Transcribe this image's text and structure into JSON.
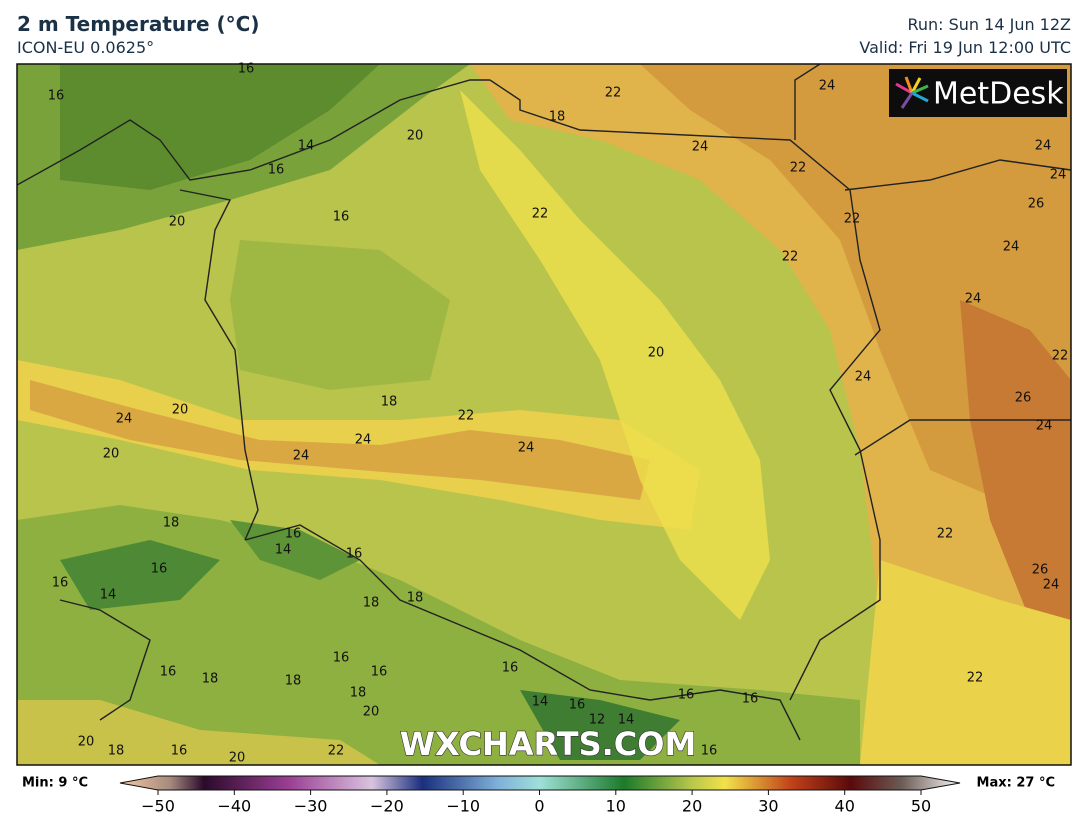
{
  "header": {
    "title": "2 m Temperature (°C)",
    "subtitle": "ICON-EU 0.0625°",
    "run": "Run: Sun 14 Jun 12Z",
    "valid": "Valid: Fri 19 Jun 12:00 UTC"
  },
  "logo": "MetDesk",
  "watermark": "WXCHARTS.COM",
  "contours": [
    16,
    16,
    14,
    16,
    20,
    18,
    22,
    24,
    24,
    22,
    24,
    24,
    26,
    22,
    16,
    20,
    22,
    24,
    22,
    24,
    20,
    22,
    24,
    18,
    22,
    20,
    24,
    26,
    24,
    24,
    24,
    24,
    20,
    18,
    16,
    14,
    16,
    16,
    16,
    14,
    18,
    18,
    22,
    26,
    24,
    16,
    16,
    16,
    18,
    18,
    16,
    18,
    20,
    16,
    16,
    22,
    14,
    16,
    12,
    14,
    20,
    18,
    16,
    20,
    22,
    16
  ],
  "colorbar": {
    "min": "Min: 9 °C",
    "max": "Max: 27 °C",
    "ticks": [
      "−50",
      "−40",
      "−30",
      "−20",
      "−10",
      "0",
      "10",
      "20",
      "30",
      "40",
      "50"
    ]
  }
}
